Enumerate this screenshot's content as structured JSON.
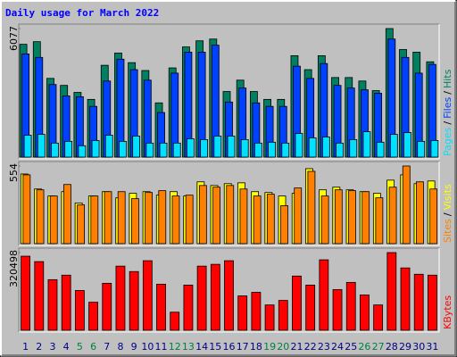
{
  "chart_data": [
    {
      "type": "bar",
      "title": "Daily usage for March 2022",
      "title_color": "#0000ff",
      "legend_separator": "/",
      "ylim": [
        0,
        6077
      ],
      "yticks": [
        6077
      ],
      "series": [
        {
          "name": "Hits",
          "color": "#008060",
          "values": [
            5333,
            5457,
            3721,
            3390,
            3059,
            2728,
            4341,
            4919,
            4465,
            4093,
            2563,
            4217,
            5209,
            5498,
            5581,
            3101,
            3638,
            3101,
            2728,
            2728,
            4795,
            4134,
            4795,
            3762,
            3762,
            3597,
            3142,
            6077,
            5085,
            4961,
            4506
          ]
        },
        {
          "name": "Files",
          "color": "#0040ff",
          "values": [
            4878,
            4713,
            3431,
            2894,
            2852,
            2398,
            3597,
            4630,
            4134,
            3638,
            2108,
            3969,
            4961,
            4961,
            5292,
            2604,
            3266,
            2563,
            2398,
            2398,
            4299,
            3721,
            4423,
            3390,
            3266,
            3183,
            3018,
            5581,
            4713,
            3969,
            4382
          ]
        },
        {
          "name": "Pages",
          "color": "#00e0ff",
          "values": [
            1034,
            1075,
            661,
            744,
            537,
            785,
            1034,
            744,
            992,
            661,
            661,
            661,
            868,
            827,
            992,
            992,
            827,
            661,
            703,
            661,
            1116,
            909,
            951,
            661,
            827,
            1199,
            703,
            1075,
            1158,
            744,
            785
          ]
        }
      ]
    },
    {
      "type": "bar",
      "legend_separator": "/",
      "ylim": [
        0,
        554
      ],
      "yticks": [
        554
      ],
      "series": [
        {
          "name": "Visits",
          "color": "#ffff00",
          "values": [
            497,
            390,
            340,
            371,
            290,
            340,
            371,
            327,
            359,
            371,
            346,
            371,
            340,
            441,
            415,
            428,
            434,
            371,
            365,
            340,
            359,
            535,
            384,
            403,
            384,
            371,
            359,
            453,
            491,
            428,
            447
          ]
        },
        {
          "name": "Sites",
          "color": "#ff8000",
          "values": [
            491,
            384,
            340,
            422,
            277,
            340,
            371,
            371,
            321,
            365,
            378,
            340,
            346,
            415,
            403,
            415,
            390,
            340,
            353,
            271,
            397,
            516,
            340,
            384,
            378,
            371,
            327,
            403,
            554,
            441,
            390
          ]
        }
      ]
    },
    {
      "type": "bar",
      "legend_separator": "/",
      "ylim": [
        0,
        320498
      ],
      "yticks": [
        320498
      ],
      "categories": [
        "1",
        "2",
        "3",
        "4",
        "5",
        "6",
        "7",
        "8",
        "9",
        "10",
        "11",
        "12",
        "13",
        "14",
        "15",
        "16",
        "17",
        "18",
        "19",
        "20",
        "21",
        "22",
        "23",
        "24",
        "25",
        "26",
        "27",
        "28",
        "29",
        "30",
        "31"
      ],
      "weekend": [
        false,
        false,
        false,
        false,
        true,
        true,
        false,
        false,
        false,
        false,
        false,
        true,
        true,
        false,
        false,
        false,
        false,
        false,
        true,
        true,
        false,
        false,
        false,
        false,
        false,
        true,
        true,
        false,
        false,
        false,
        false
      ],
      "weekday_color": "#000080",
      "weekend_color": "#008040",
      "series": [
        {
          "name": "KBytes",
          "color": "#ff0000",
          "values": [
            305614,
            283252,
            208712,
            227347,
            163988,
            115537,
            193804,
            264617,
            242255,
            286979,
            190077,
            74540,
            186350,
            264617,
            272071,
            286979,
            141626,
            156534,
            104356,
            122991,
            223620,
            186350,
            290706,
            167715,
            197531,
            145353,
            104356,
            320498,
            257163,
            231074,
            227347
          ]
        }
      ]
    }
  ]
}
